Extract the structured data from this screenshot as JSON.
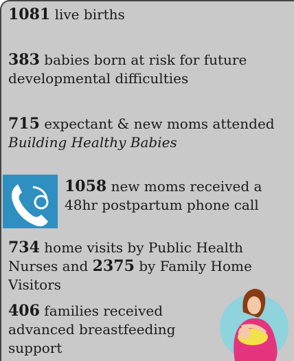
{
  "items": [
    {
      "runs": [
        {
          "text": "1081",
          "style": "bold"
        },
        {
          "text": " live births",
          "style": "plain"
        }
      ]
    },
    {
      "runs": [
        {
          "text": "383",
          "style": "bold"
        },
        {
          "text": " babies born at risk for future developmental difficulties",
          "style": "plain"
        }
      ]
    },
    {
      "runs": [
        {
          "text": "715",
          "style": "bold"
        },
        {
          "text": " expectant & new moms attended ",
          "style": "plain"
        },
        {
          "text": "Building Healthy Babies",
          "style": "italic"
        }
      ]
    },
    {
      "runs": [
        {
          "text": "1058",
          "style": "bold"
        },
        {
          "text": " new moms received a 48hr postpartum phone call",
          "style": "plain"
        }
      ]
    },
    {
      "runs": [
        {
          "text": "734",
          "style": "bold"
        },
        {
          "text": " home visits by Public Health Nurses and ",
          "style": "plain"
        },
        {
          "text": "2375",
          "style": "bold"
        },
        {
          "text": " by Family Home Visitors",
          "style": "plain"
        }
      ]
    },
    {
      "runs": [
        {
          "text": "406",
          "style": "bold"
        },
        {
          "text": " families received advanced breastfeeding support",
          "style": "plain"
        }
      ]
    }
  ]
}
